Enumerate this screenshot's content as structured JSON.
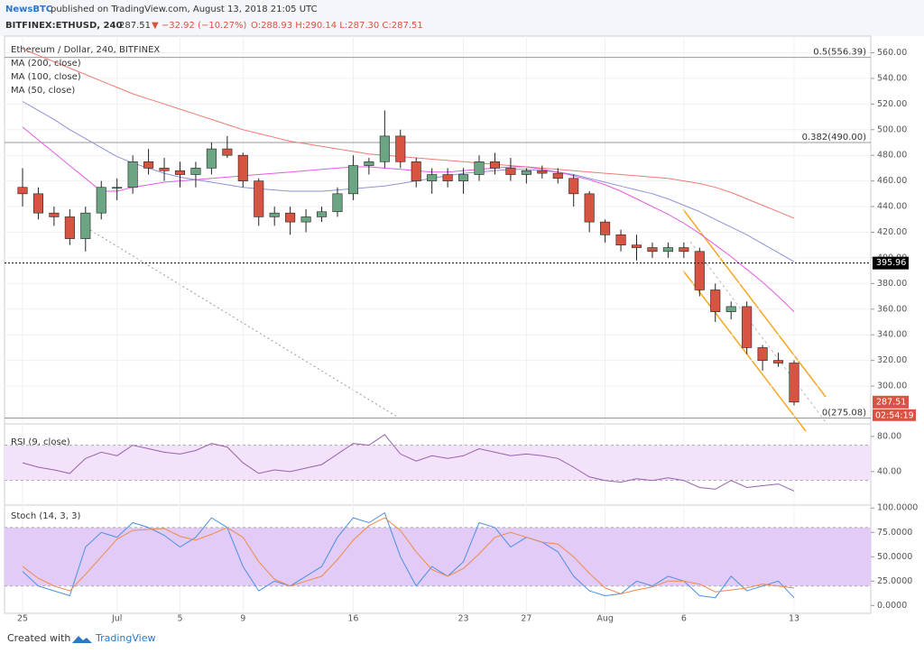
{
  "header": {
    "publisher": "NewsBTC",
    "published": "published on TradingView.com, August 13, 2018 21:05 UTC",
    "symbol": "BITFINEX:ETHUSD, 240",
    "last": "287.51",
    "change": "▼ −32.92 (−10.27%)",
    "ohlc": "O:288.93 H:290.14 L:287.30 C:287.51"
  },
  "chart_data": [
    {
      "type": "candlestick",
      "title": "Ethereum / Dollar, 240, BITFINEX",
      "categories": [
        "25",
        null,
        null,
        null,
        null,
        null,
        "Jul",
        null,
        null,
        null,
        "5",
        null,
        null,
        null,
        "9",
        null,
        null,
        null,
        null,
        null,
        null,
        "16",
        null,
        null,
        null,
        null,
        null,
        null,
        "23",
        null,
        null,
        null,
        "27",
        null,
        null,
        null,
        null,
        "Aug",
        null,
        null,
        null,
        null,
        "6",
        null,
        null,
        null,
        null,
        null,
        null,
        "13"
      ],
      "open": [
        455,
        450,
        435,
        432,
        415,
        435,
        455,
        455,
        475,
        470,
        468,
        465,
        470,
        485,
        480,
        460,
        432,
        435,
        428,
        432,
        436,
        450,
        472,
        475,
        495,
        475,
        460,
        465,
        460,
        465,
        475,
        470,
        465,
        468,
        466,
        462,
        450,
        428,
        418,
        410,
        408,
        405,
        408,
        405,
        375,
        358,
        362,
        330,
        320,
        318
      ],
      "high": [
        470,
        455,
        440,
        438,
        440,
        460,
        462,
        480,
        485,
        478,
        475,
        475,
        490,
        495,
        482,
        462,
        440,
        440,
        438,
        440,
        455,
        480,
        478,
        515,
        500,
        478,
        470,
        470,
        470,
        480,
        482,
        478,
        470,
        472,
        470,
        465,
        452,
        430,
        422,
        418,
        412,
        412,
        412,
        408,
        380,
        366,
        366,
        332,
        326,
        320
      ],
      "low": [
        440,
        430,
        425,
        410,
        405,
        430,
        445,
        450,
        465,
        460,
        455,
        455,
        465,
        478,
        455,
        425,
        425,
        418,
        420,
        428,
        432,
        445,
        465,
        470,
        470,
        455,
        450,
        455,
        450,
        460,
        465,
        460,
        458,
        462,
        458,
        440,
        420,
        412,
        405,
        398,
        400,
        400,
        400,
        370,
        350,
        352,
        325,
        312,
        315,
        285
      ],
      "close": [
        450,
        435,
        432,
        415,
        435,
        455,
        455,
        475,
        470,
        468,
        465,
        470,
        485,
        480,
        460,
        432,
        435,
        428,
        432,
        436,
        450,
        472,
        475,
        495,
        475,
        460,
        465,
        460,
        465,
        475,
        470,
        465,
        468,
        466,
        462,
        450,
        428,
        418,
        410,
        408,
        405,
        408,
        405,
        375,
        358,
        362,
        330,
        320,
        318,
        287.51
      ],
      "up_color": "#6ba583",
      "down_color": "#d75442",
      "series": [
        {
          "name": "MA (200, close)",
          "color": "#ef7a72",
          "values": [
            563,
            558,
            553,
            548,
            543,
            538,
            533,
            528,
            524,
            520,
            516,
            512,
            508,
            504,
            500,
            497,
            494,
            491,
            489,
            487,
            485,
            483,
            481,
            480,
            479,
            478,
            477,
            476,
            475,
            474,
            473,
            472,
            471,
            470,
            469,
            468,
            467,
            466,
            465,
            464,
            463,
            462,
            460,
            458,
            455,
            451,
            446,
            441,
            436,
            431
          ]
        },
        {
          "name": "MA (100, close)",
          "color": "#8e92d6",
          "values": [
            522,
            515,
            508,
            500,
            493,
            486,
            479,
            474,
            470,
            466,
            463,
            461,
            459,
            457,
            455,
            454,
            453,
            452,
            452,
            452,
            453,
            454,
            455,
            456,
            458,
            460,
            462,
            464,
            466,
            467,
            468,
            469,
            469,
            468,
            467,
            465,
            462,
            459,
            456,
            453,
            450,
            446,
            441,
            436,
            430,
            424,
            418,
            411,
            404,
            397
          ]
        },
        {
          "name": "MA (50, close)",
          "color": "#e45be0",
          "values": [
            502,
            492,
            482,
            472,
            462,
            452,
            452,
            455,
            457,
            459,
            460,
            461,
            462,
            463,
            464,
            465,
            466,
            467,
            468,
            469,
            470,
            471,
            471,
            470,
            469,
            468,
            467,
            467,
            468,
            469,
            470,
            471,
            471,
            469,
            467,
            464,
            461,
            457,
            452,
            446,
            440,
            434,
            427,
            419,
            410,
            401,
            391,
            381,
            370,
            358
          ]
        }
      ],
      "ylim": [
        270.5,
        573
      ],
      "yticks": [
        {
          "value": 300,
          "label": "300.00"
        },
        {
          "value": 320,
          "label": "320.00"
        },
        {
          "value": 340,
          "label": "340.00"
        },
        {
          "value": 360,
          "label": "360.00"
        },
        {
          "value": 380,
          "label": "380.00"
        },
        {
          "value": 400,
          "label": "400.00"
        },
        {
          "value": 420,
          "label": "420.00"
        },
        {
          "value": 440,
          "label": "440.00"
        },
        {
          "value": 460,
          "label": "460.00"
        },
        {
          "value": 480,
          "label": "480.00"
        },
        {
          "value": 500,
          "label": "500.00"
        },
        {
          "value": 520,
          "label": "520.00"
        },
        {
          "value": 540,
          "label": "540.00"
        },
        {
          "value": 560,
          "label": "560.00"
        }
      ],
      "levels": [
        {
          "label": "0.5(556.39)",
          "value": 556.39
        },
        {
          "label": "0.382(490.00)",
          "value": 490
        },
        {
          "label": "0(275.08)",
          "value": 275.08
        }
      ],
      "hline": 395.96,
      "last_price": 287.51,
      "countdown": "02:54:19",
      "grid": true
    },
    {
      "type": "line",
      "title": "RSI (9, close)",
      "color": "#9b5fb0",
      "band": [
        30,
        70
      ],
      "band_color": "#f3e3fa",
      "values": [
        50,
        45,
        42,
        38,
        55,
        62,
        58,
        70,
        66,
        62,
        60,
        64,
        72,
        68,
        50,
        38,
        42,
        40,
        44,
        48,
        60,
        72,
        70,
        82,
        60,
        52,
        58,
        55,
        58,
        66,
        62,
        58,
        60,
        58,
        55,
        45,
        34,
        30,
        28,
        32,
        30,
        33,
        30,
        22,
        20,
        30,
        22,
        24,
        26,
        18
      ],
      "ylim": [
        2,
        86
      ],
      "yticks": [
        {
          "value": 40,
          "label": "40.00"
        },
        {
          "value": 80,
          "label": "80.00"
        }
      ]
    },
    {
      "type": "line",
      "title": "Stoch (14, 3, 3)",
      "band": [
        20,
        80
      ],
      "band_color": "#e2cbf6",
      "series": [
        {
          "color": "#4a90e2",
          "values": [
            35,
            20,
            15,
            10,
            60,
            75,
            70,
            85,
            80,
            72,
            60,
            70,
            90,
            80,
            40,
            15,
            25,
            20,
            30,
            40,
            70,
            90,
            85,
            95,
            50,
            20,
            40,
            30,
            45,
            85,
            80,
            60,
            70,
            65,
            55,
            30,
            15,
            10,
            12,
            25,
            20,
            30,
            25,
            10,
            8,
            30,
            15,
            20,
            25,
            8
          ]
        },
        {
          "color": "#ef8b4c",
          "values": [
            40,
            28,
            20,
            15,
            32,
            50,
            68,
            77,
            78,
            79,
            71,
            67,
            73,
            80,
            70,
            45,
            27,
            20,
            25,
            30,
            47,
            67,
            82,
            90,
            77,
            55,
            37,
            30,
            38,
            53,
            70,
            75,
            70,
            65,
            63,
            50,
            33,
            18,
            12,
            16,
            19,
            25,
            25,
            22,
            14,
            16,
            18,
            22,
            20,
            18
          ]
        }
      ],
      "ylim": [
        -8,
        103
      ],
      "yticks": [
        {
          "value": 0,
          "label": "0.0000"
        },
        {
          "value": 25,
          "label": "25.0000"
        },
        {
          "value": 50,
          "label": "50.0000"
        },
        {
          "value": 75,
          "label": "75.0000"
        },
        {
          "value": 100,
          "label": "100.0000"
        }
      ]
    }
  ],
  "footer": {
    "created": "Created with",
    "brand": "TradingView"
  }
}
